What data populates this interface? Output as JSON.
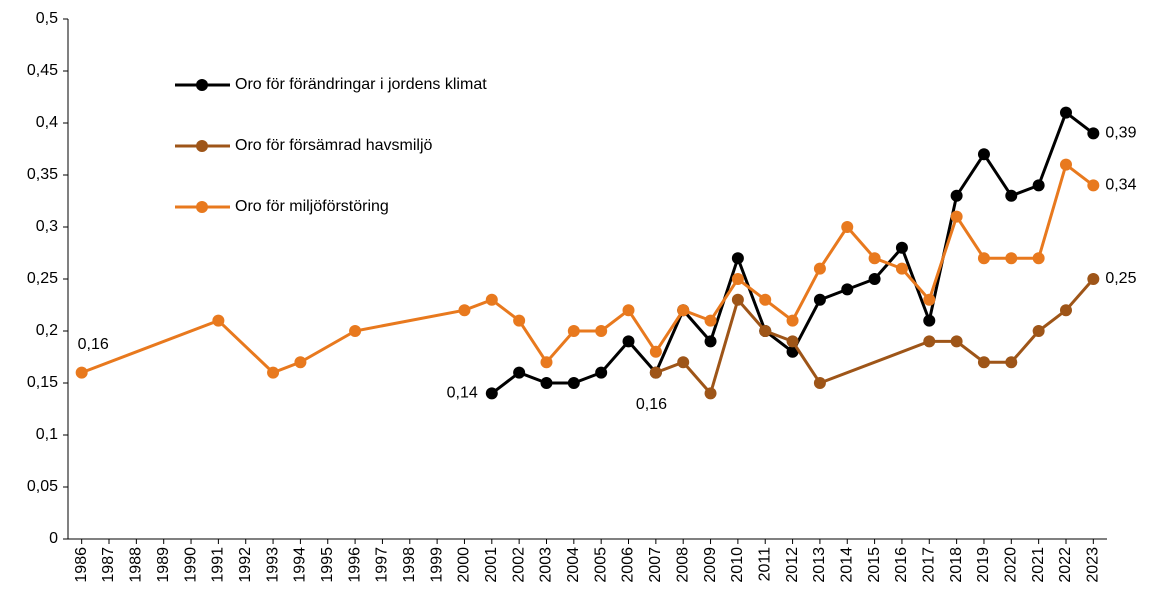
{
  "chart_data": {
    "type": "line",
    "xlim": [
      1985.5,
      2023.5
    ],
    "xticks": [
      1986,
      1987,
      1988,
      1989,
      1990,
      1991,
      1992,
      1993,
      1994,
      1995,
      1996,
      1997,
      1998,
      1999,
      2000,
      2001,
      2002,
      2003,
      2004,
      2005,
      2006,
      2007,
      2008,
      2009,
      2010,
      2011,
      2012,
      2013,
      2014,
      2015,
      2016,
      2017,
      2018,
      2019,
      2020,
      2021,
      2022,
      2023
    ],
    "ylim": [
      0,
      0.5
    ],
    "yticks": [
      {
        "value": 0,
        "label": "0"
      },
      {
        "value": 0.05,
        "label": "0,05"
      },
      {
        "value": 0.1,
        "label": "0,1"
      },
      {
        "value": 0.15,
        "label": "0,15"
      },
      {
        "value": 0.2,
        "label": "0,2"
      },
      {
        "value": 0.25,
        "label": "0,25"
      },
      {
        "value": 0.3,
        "label": "0,3"
      },
      {
        "value": 0.35,
        "label": "0,35"
      },
      {
        "value": 0.4,
        "label": "0,4"
      },
      {
        "value": 0.45,
        "label": "0,45"
      },
      {
        "value": 0.5,
        "label": "0,5"
      }
    ],
    "series": [
      {
        "name": "Oro för förändringar i jordens klimat",
        "color": "#000000",
        "x": [
          2001,
          2002,
          2003,
          2004,
          2005,
          2006,
          2007,
          2008,
          2009,
          2010,
          2011,
          2012,
          2013,
          2014,
          2015,
          2016,
          2017,
          2018,
          2019,
          2020,
          2021,
          2022,
          2023
        ],
        "values": [
          0.14,
          0.16,
          0.15,
          0.15,
          0.16,
          0.19,
          0.16,
          0.22,
          0.19,
          0.27,
          0.2,
          0.18,
          0.23,
          0.24,
          0.25,
          0.28,
          0.21,
          0.33,
          0.37,
          0.33,
          0.34,
          0.41,
          0.39
        ],
        "value_labels": [
          "0,14",
          null,
          null,
          null,
          null,
          null,
          null,
          null,
          null,
          null,
          null,
          null,
          null,
          null,
          null,
          null,
          null,
          null,
          null,
          null,
          null,
          null,
          "0,39"
        ]
      },
      {
        "name": "Oro för försämrad havsmiljö",
        "color": "#9e5518",
        "x": [
          2007,
          2008,
          2009,
          2010,
          2011,
          2012,
          2013,
          2017,
          2018,
          2019,
          2020,
          2021,
          2022,
          2023
        ],
        "values": [
          0.16,
          0.17,
          0.14,
          0.23,
          0.2,
          0.19,
          0.15,
          0.19,
          0.19,
          0.17,
          0.17,
          0.2,
          0.22,
          0.25
        ],
        "value_labels": [
          "0,16",
          null,
          null,
          null,
          null,
          null,
          null,
          null,
          null,
          null,
          null,
          null,
          null,
          "0,25"
        ]
      },
      {
        "name": "Oro för miljöförstöring",
        "color": "#e8791e",
        "x": [
          1986,
          1991,
          1993,
          1994,
          1996,
          2000,
          2001,
          2002,
          2003,
          2004,
          2005,
          2006,
          2007,
          2008,
          2009,
          2010,
          2011,
          2012,
          2013,
          2014,
          2015,
          2016,
          2017,
          2018,
          2019,
          2020,
          2021,
          2022,
          2023
        ],
        "values": [
          0.16,
          0.21,
          0.16,
          0.17,
          0.2,
          0.22,
          0.23,
          0.21,
          0.17,
          0.2,
          0.2,
          0.22,
          0.18,
          0.22,
          0.21,
          0.25,
          0.23,
          0.21,
          0.26,
          0.3,
          0.27,
          0.26,
          0.23,
          0.31,
          0.27,
          0.27,
          0.27,
          0.36,
          0.34
        ],
        "value_labels": [
          "0,16",
          null,
          null,
          null,
          null,
          null,
          null,
          null,
          null,
          null,
          null,
          null,
          null,
          null,
          null,
          null,
          null,
          null,
          null,
          null,
          null,
          null,
          null,
          null,
          null,
          null,
          null,
          null,
          "0,34"
        ]
      }
    ]
  }
}
